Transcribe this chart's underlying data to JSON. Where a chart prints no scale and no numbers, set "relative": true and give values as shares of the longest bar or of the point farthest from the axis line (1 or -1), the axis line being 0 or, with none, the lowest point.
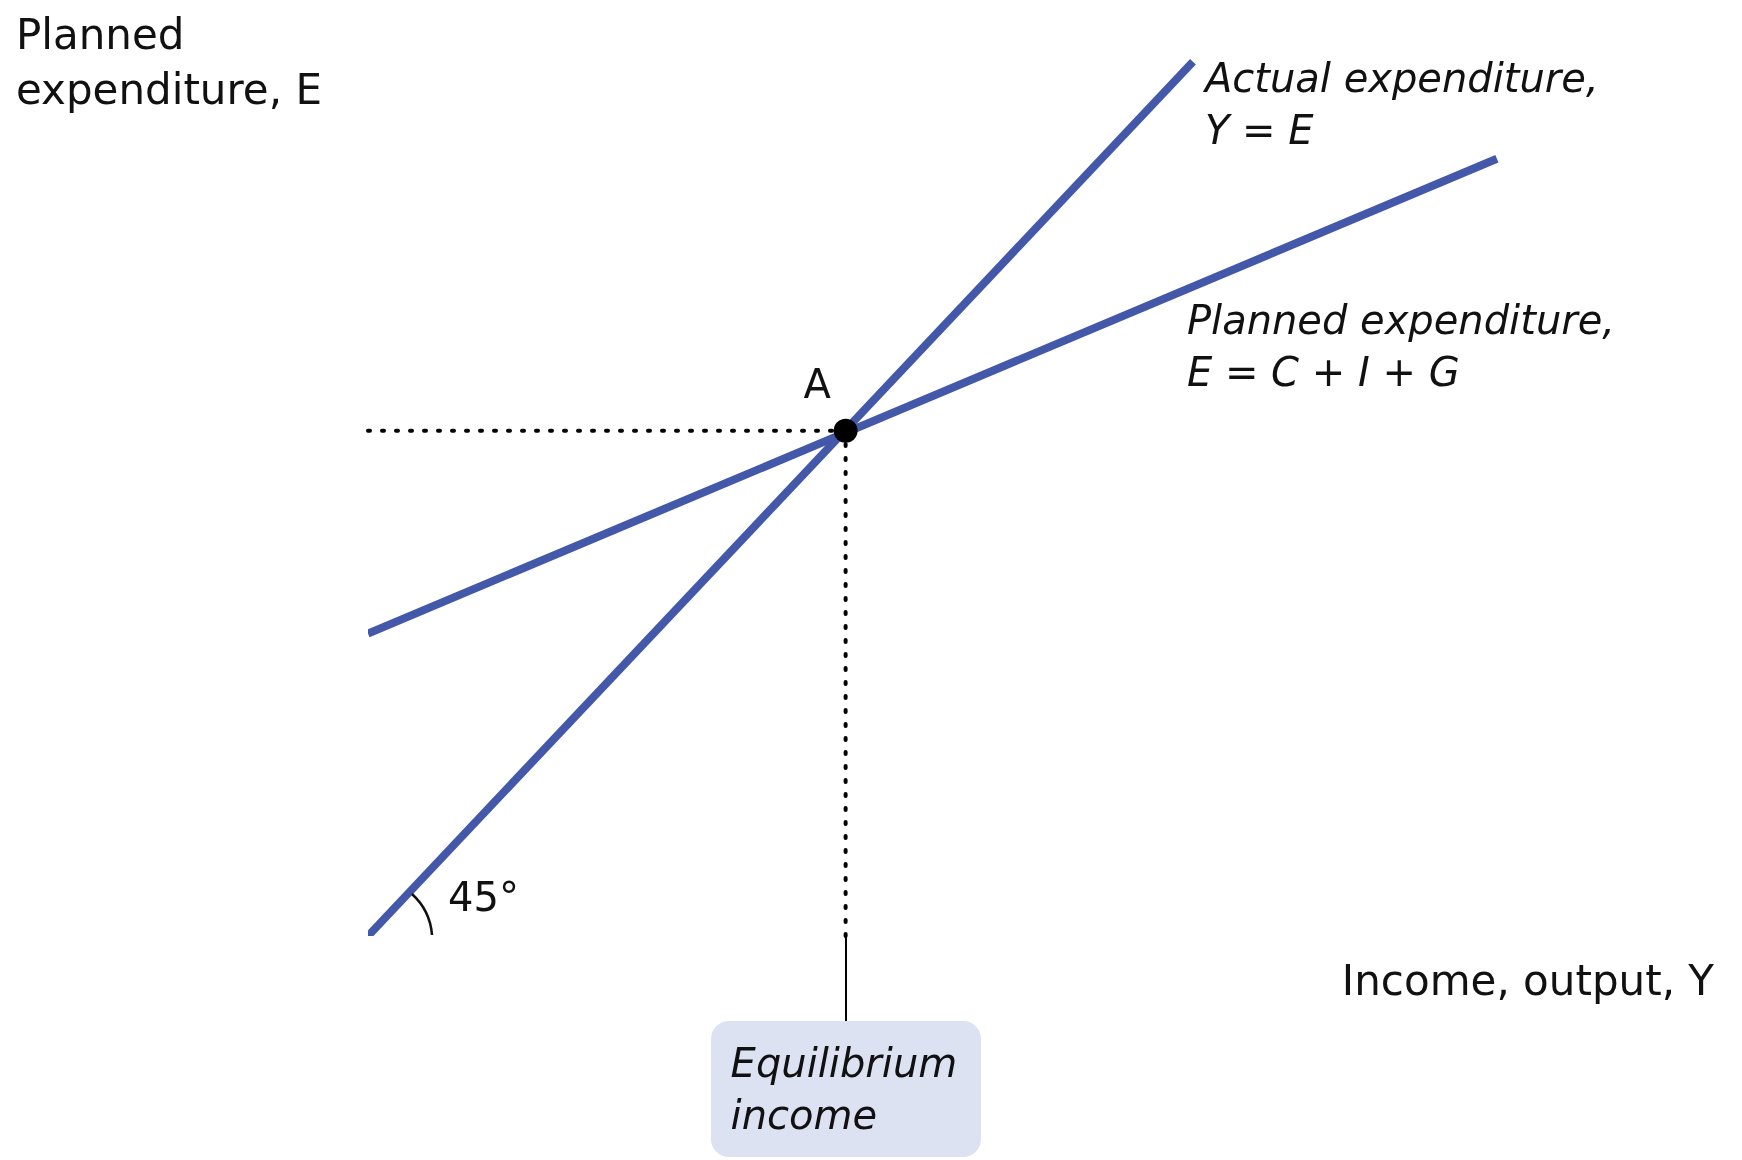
{
  "chart_data": {
    "type": "line",
    "relative": true,
    "xlabel": "Income, output, Y",
    "ylabel": "Planned expenditure, E",
    "marker": "none",
    "line_style": "solid",
    "categories": [
      null,
      null,
      null,
      null,
      null,
      null,
      null,
      null,
      null,
      null,
      null,
      null,
      null,
      null,
      null,
      null,
      null,
      null,
      null,
      null,
      null,
      null,
      null,
      null,
      null,
      null,
      null,
      null,
      null,
      null,
      null,
      null
    ],
    "series": [
      {
        "name": "Actual expenditure, Y = E",
        "color": "#4358a8",
        "values": [
          0,
          null,
          null,
          null,
          null,
          null,
          null,
          null,
          null,
          null,
          null,
          null,
          null,
          null,
          null,
          null,
          null,
          null,
          null,
          1,
          null,
          null,
          null,
          null,
          null,
          null,
          null,
          null,
          null,
          null,
          null,
          null
        ]
      },
      {
        "name": "Planned expenditure, E = C + I + G",
        "color": "#4358a8",
        "values": [
          0.346,
          null,
          null,
          null,
          null,
          null,
          null,
          null,
          null,
          null,
          null,
          null,
          null,
          null,
          null,
          null,
          null,
          null,
          null,
          null,
          null,
          null,
          null,
          null,
          null,
          null,
          0.889,
          null,
          null,
          null,
          null,
          null
        ]
      },
      {
        "color": "#000000",
        "marker": "circle",
        "values": [
          null,
          null,
          null,
          null,
          null,
          null,
          null,
          null,
          null,
          null,
          null,
          0.578,
          null,
          null,
          null,
          null,
          null,
          null,
          null,
          null,
          null,
          null,
          null,
          null,
          null,
          null,
          null,
          null,
          null,
          null,
          null,
          null
        ]
      }
    ],
    "ref_lines": [
      {
        "axis": "x",
        "label": "Equilibrium income",
        "line_style": "dotted",
        "color": "#000000"
      },
      {
        "axis": "y",
        "value": 0.578,
        "line_style": "dotted",
        "color": "#000000"
      }
    ],
    "annotations": [
      "A",
      "45°"
    ]
  }
}
